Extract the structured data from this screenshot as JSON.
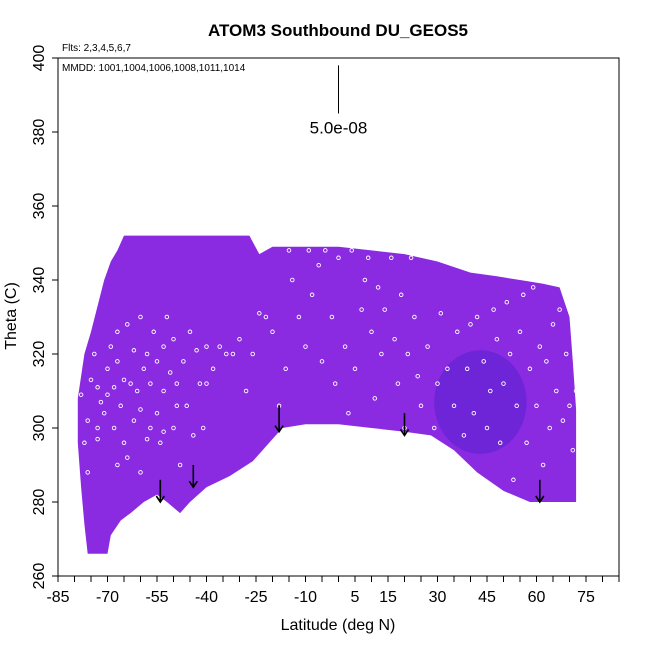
{
  "chart_data": {
    "type": "scatter",
    "title": "ATOM3 Southbound DU_GEOS5",
    "subtitle_flights": "Flts: 2,3,4,5,6,7",
    "annotation_dates": "MMDD: 1001,1004,1006,1008,1011,1014",
    "xlabel": "Latitude (deg N)",
    "ylabel": "Theta (C)",
    "xlim": [
      -85,
      85
    ],
    "ylim": [
      260,
      400
    ],
    "x_ticks": [
      -85,
      -70,
      -55,
      -40,
      -25,
      -10,
      5,
      15,
      30,
      45,
      60,
      75
    ],
    "y_ticks": [
      260,
      280,
      300,
      320,
      340,
      360,
      380,
      400
    ],
    "scale_label": "5.0e-08",
    "scale_bar": {
      "x": 0,
      "y_top": 398,
      "y_bottom": 385
    },
    "field_color": "#8a2be2",
    "field_color_dark": "#6a24d6",
    "arrows": [
      {
        "x": -54,
        "y_start": 286,
        "y_end": 280
      },
      {
        "x": -44,
        "y_start": 290,
        "y_end": 284
      },
      {
        "x": -18,
        "y_start": 306,
        "y_end": 299
      },
      {
        "x": 20,
        "y_start": 304,
        "y_end": 298
      },
      {
        "x": 61,
        "y_start": 286,
        "y_end": 280
      }
    ],
    "series": [
      {
        "name": "flight-track-points",
        "points": [
          [
            -78,
            309
          ],
          [
            -77,
            296
          ],
          [
            -76,
            288
          ],
          [
            -76,
            302
          ],
          [
            -75,
            313
          ],
          [
            -74,
            320
          ],
          [
            -73,
            300
          ],
          [
            -73,
            311
          ],
          [
            -72,
            307
          ],
          [
            -71,
            304
          ],
          [
            -70,
            309
          ],
          [
            -70,
            316
          ],
          [
            -69,
            322
          ],
          [
            -68,
            300
          ],
          [
            -68,
            311
          ],
          [
            -67,
            318
          ],
          [
            -67,
            326
          ],
          [
            -66,
            306
          ],
          [
            -65,
            313
          ],
          [
            -65,
            296
          ],
          [
            -64,
            328
          ],
          [
            -63,
            312
          ],
          [
            -62,
            302
          ],
          [
            -62,
            321
          ],
          [
            -61,
            310
          ],
          [
            -60,
            305
          ],
          [
            -60,
            330
          ],
          [
            -59,
            316
          ],
          [
            -58,
            297
          ],
          [
            -58,
            320
          ],
          [
            -57,
            312
          ],
          [
            -56,
            326
          ],
          [
            -55,
            304
          ],
          [
            -55,
            318
          ],
          [
            -54,
            296
          ],
          [
            -53,
            322
          ],
          [
            -53,
            310
          ],
          [
            -52,
            330
          ],
          [
            -51,
            315
          ],
          [
            -50,
            300
          ],
          [
            -50,
            324
          ],
          [
            -49,
            312
          ],
          [
            -48,
            290
          ],
          [
            -47,
            318
          ],
          [
            -46,
            306
          ],
          [
            -45,
            326
          ],
          [
            -44,
            298
          ],
          [
            -43,
            321
          ],
          [
            -42,
            312
          ],
          [
            -41,
            300
          ],
          [
            -40,
            322
          ],
          [
            -38,
            316
          ],
          [
            -36,
            322
          ],
          [
            -34,
            320
          ],
          [
            -32,
            320
          ],
          [
            -30,
            324
          ],
          [
            -28,
            310
          ],
          [
            -26,
            320
          ],
          [
            -24,
            331
          ],
          [
            -22,
            330
          ],
          [
            -20,
            326
          ],
          [
            -18,
            306
          ],
          [
            -16,
            316
          ],
          [
            -15,
            348
          ],
          [
            -14,
            340
          ],
          [
            -12,
            330
          ],
          [
            -10,
            322
          ],
          [
            -9,
            348
          ],
          [
            -8,
            336
          ],
          [
            -6,
            344
          ],
          [
            -5,
            318
          ],
          [
            -4,
            348
          ],
          [
            -2,
            330
          ],
          [
            -1,
            312
          ],
          [
            0,
            346
          ],
          [
            2,
            322
          ],
          [
            3,
            304
          ],
          [
            4,
            348
          ],
          [
            5,
            316
          ],
          [
            7,
            332
          ],
          [
            8,
            340
          ],
          [
            9,
            346
          ],
          [
            10,
            326
          ],
          [
            11,
            308
          ],
          [
            12,
            338
          ],
          [
            13,
            320
          ],
          [
            14,
            332
          ],
          [
            16,
            346
          ],
          [
            17,
            324
          ],
          [
            18,
            312
          ],
          [
            19,
            336
          ],
          [
            20,
            300
          ],
          [
            21,
            320
          ],
          [
            22,
            346
          ],
          [
            23,
            330
          ],
          [
            24,
            314
          ],
          [
            25,
            306
          ],
          [
            27,
            322
          ],
          [
            29,
            300
          ],
          [
            30,
            312
          ],
          [
            31,
            331
          ],
          [
            33,
            316
          ],
          [
            35,
            306
          ],
          [
            36,
            326
          ],
          [
            38,
            298
          ],
          [
            39,
            316
          ],
          [
            40,
            328
          ],
          [
            41,
            304
          ],
          [
            42,
            330
          ],
          [
            44,
            318
          ],
          [
            45,
            300
          ],
          [
            46,
            310
          ],
          [
            47,
            332
          ],
          [
            48,
            324
          ],
          [
            49,
            296
          ],
          [
            50,
            312
          ],
          [
            51,
            334
          ],
          [
            52,
            320
          ],
          [
            53,
            286
          ],
          [
            54,
            306
          ],
          [
            55,
            326
          ],
          [
            56,
            336
          ],
          [
            57,
            296
          ],
          [
            58,
            316
          ],
          [
            59,
            338
          ],
          [
            60,
            306
          ],
          [
            61,
            322
          ],
          [
            62,
            290
          ],
          [
            63,
            318
          ],
          [
            64,
            300
          ],
          [
            65,
            328
          ],
          [
            66,
            310
          ],
          [
            67,
            332
          ],
          [
            68,
            302
          ],
          [
            69,
            320
          ],
          [
            70,
            306
          ],
          [
            71,
            294
          ],
          [
            72,
            310
          ],
          [
            -73,
            297
          ],
          [
            -64,
            292
          ],
          [
            -57,
            300
          ],
          [
            -49,
            306
          ],
          [
            -40,
            312
          ],
          [
            -67,
            290
          ],
          [
            -60,
            288
          ],
          [
            -53,
            299
          ]
        ]
      }
    ]
  }
}
